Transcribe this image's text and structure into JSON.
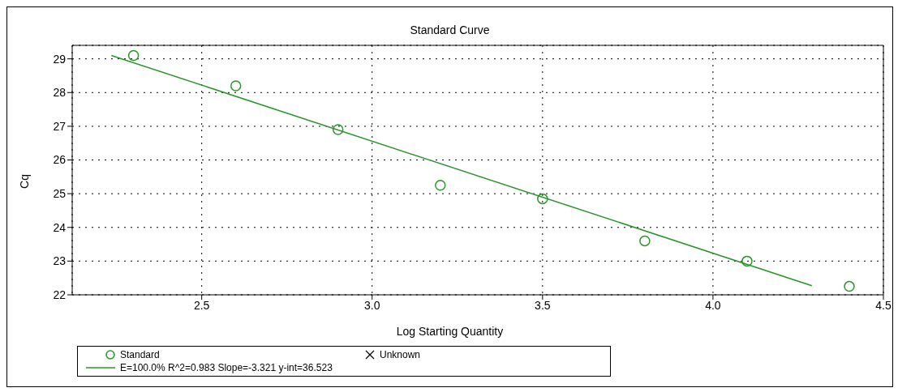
{
  "chart_data": {
    "type": "scatter",
    "title": "Standard Curve",
    "xlabel": "Log Starting Quantity",
    "ylabel": "Cq",
    "xlim": [
      2.12,
      4.5
    ],
    "xticks": [
      2.5,
      {
        "value": 3,
        "label": "3.0"
      },
      3.5,
      {
        "value": 4,
        "label": "4.0"
      },
      4.5
    ],
    "ylim": [
      22,
      29.4
    ],
    "yticks": [
      22,
      23,
      24,
      25,
      26,
      27,
      28,
      29
    ],
    "grid": true,
    "legend": "bottom",
    "series": [
      {
        "name": "Standard",
        "marker": "circle",
        "color": "#2a952a",
        "x": [
          2.3,
          2.6,
          2.9,
          3.2,
          3.5,
          3.8,
          4.1,
          4.4
        ],
        "values": [
          29.1,
          28.2,
          26.9,
          25.25,
          24.85,
          23.6,
          23.0,
          22.25
        ]
      },
      {
        "name": "Unknown",
        "marker": "cross",
        "color": "#000000"
      },
      {
        "name": "E=100.0% R^2=0.983 Slope=-3.321 y-int=36.523",
        "type": "line",
        "line_style": "solid",
        "color": "#2a952a",
        "x": [
          2.235,
          4.29
        ],
        "values": [
          29.1,
          22.27
        ]
      }
    ]
  }
}
